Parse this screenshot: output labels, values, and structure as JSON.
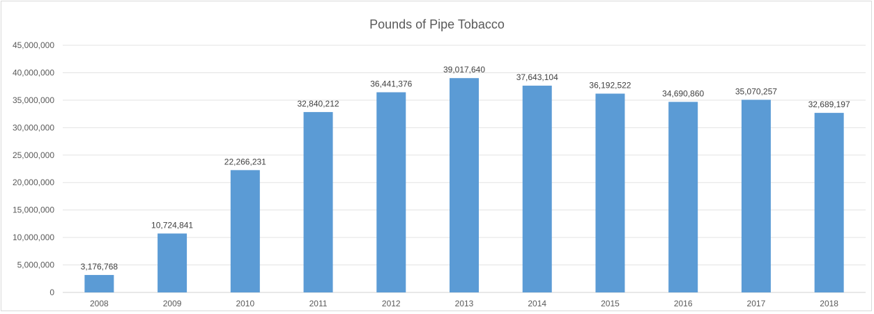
{
  "chart_data": {
    "type": "bar",
    "title": "Pounds of Pipe Tobacco",
    "xlabel": "",
    "ylabel": "",
    "categories": [
      "2008",
      "2009",
      "2010",
      "2011",
      "2012",
      "2013",
      "2014",
      "2015",
      "2016",
      "2017",
      "2018"
    ],
    "values": [
      3176768,
      10724841,
      22266231,
      32840212,
      36441376,
      39017640,
      37643104,
      36192522,
      34690860,
      35070257,
      32689197
    ],
    "value_labels": [
      "3,176,768",
      "10,724,841",
      "22,266,231",
      "32,840,212",
      "36,441,376",
      "39,017,640",
      "37,643,104",
      "36,192,522",
      "34,690,860",
      "35,070,257",
      "32,689,197"
    ],
    "ylim": [
      0,
      45000000
    ],
    "y_ticks": [
      0,
      5000000,
      10000000,
      15000000,
      20000000,
      25000000,
      30000000,
      35000000,
      40000000,
      45000000
    ],
    "y_tick_labels": [
      "0",
      "5,000,000",
      "10,000,000",
      "15,000,000",
      "20,000,000",
      "25,000,000",
      "30,000,000",
      "35,000,000",
      "40,000,000",
      "45,000,000"
    ],
    "grid": true,
    "legend": "none",
    "bar_color": "#5b9bd5"
  }
}
